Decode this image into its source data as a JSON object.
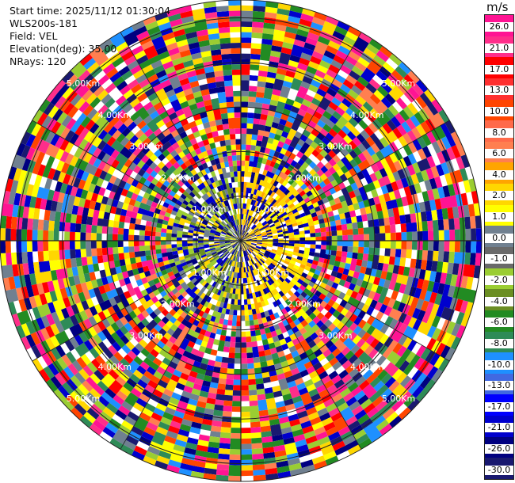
{
  "header": {
    "start_time": "Start time: 2025/11/12 01:30:04",
    "instrument": "WLS200s-181",
    "field": "Field: VEL",
    "elevation": "Elevation(deg): 35.00",
    "nrays": "NRays: 120"
  },
  "colorbar": {
    "unit": "m/s",
    "labels": [
      "26.0",
      "21.0",
      "17.0",
      "13.0",
      "10.0",
      "8.0",
      "6.0",
      "4.0",
      "2.0",
      "1.0",
      "0.0",
      "-1.0",
      "-2.0",
      "-4.0",
      "-6.0",
      "-8.0",
      "-10.0",
      "-13.0",
      "-17.0",
      "-21.0",
      "-26.0",
      "-30.0"
    ],
    "colors": [
      "#ff1493",
      "#ff2e8a",
      "#ff0000",
      "#ff3030",
      "#ff4500",
      "#ff6a4a",
      "#ff7f50",
      "#ffa500",
      "#ffd700",
      "#ffff00",
      "#708090",
      "#696969",
      "#9acd32",
      "#6b8e23",
      "#228b22",
      "#2e8b57",
      "#1e90ff",
      "#4169e1",
      "#0000ff",
      "#0000cd",
      "#000080",
      "#191970"
    ]
  },
  "chart_data": {
    "type": "ppi",
    "field": "VEL",
    "unit": "m/s",
    "elevation_deg": 35.0,
    "nrays": 120,
    "range_rings_km": [
      1.0,
      2.0,
      3.0,
      4.0,
      5.0
    ],
    "ring_labels": [
      "1.00Km",
      "2.00Km",
      "3.00Km",
      "4.00Km",
      "5.00Km"
    ],
    "max_range_km": 5.4,
    "color_scale": [
      "26.0",
      "21.0",
      "17.0",
      "13.0",
      "10.0",
      "8.0",
      "6.0",
      "4.0",
      "2.0",
      "1.0",
      "0.0",
      "-1.0",
      "-2.0",
      "-4.0",
      "-6.0",
      "-8.0",
      "-10.0",
      "-13.0",
      "-17.0",
      "-21.0",
      "-26.0",
      "-30.0"
    ]
  }
}
